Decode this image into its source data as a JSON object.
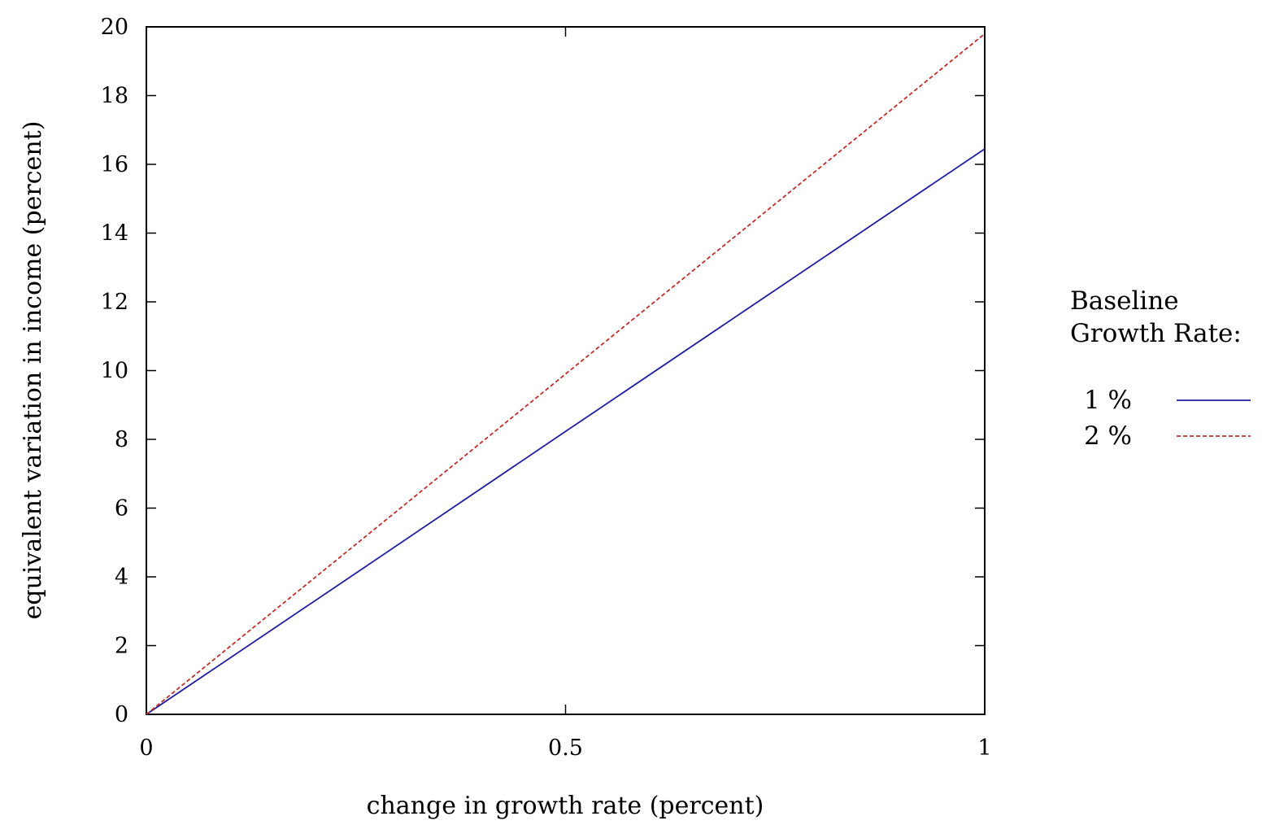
{
  "chart_data": {
    "type": "line",
    "title": "",
    "xlabel": "change in growth rate (percent)",
    "ylabel": "equivalent variation in income (percent)",
    "xlim": [
      0,
      1
    ],
    "ylim": [
      0,
      20
    ],
    "xticks": [
      0,
      0.5,
      1
    ],
    "xtick_labels": [
      "0",
      "0.5",
      "1"
    ],
    "yticks": [
      0,
      2,
      4,
      6,
      8,
      10,
      12,
      14,
      16,
      18,
      20
    ],
    "ytick_labels": [
      "0",
      "2",
      "4",
      "6",
      "8",
      "10",
      "12",
      "14",
      "16",
      "18",
      "20"
    ],
    "grid": false,
    "legend": {
      "title_lines": [
        "Baseline",
        "Growth Rate:"
      ],
      "placement": "right, outside plot"
    },
    "series": [
      {
        "name": "1 %",
        "color": "#1f1f9f",
        "style": "solid",
        "x": [
          0,
          0.25,
          0.5,
          0.75,
          1
        ],
        "y": [
          0,
          4.11,
          8.23,
          12.34,
          16.45
        ]
      },
      {
        "name": "2 %",
        "color": "#c0302a",
        "style": "dashed",
        "x": [
          0,
          0.25,
          0.5,
          0.75,
          1
        ],
        "y": [
          0,
          4.95,
          9.9,
          14.85,
          19.8
        ]
      }
    ]
  }
}
